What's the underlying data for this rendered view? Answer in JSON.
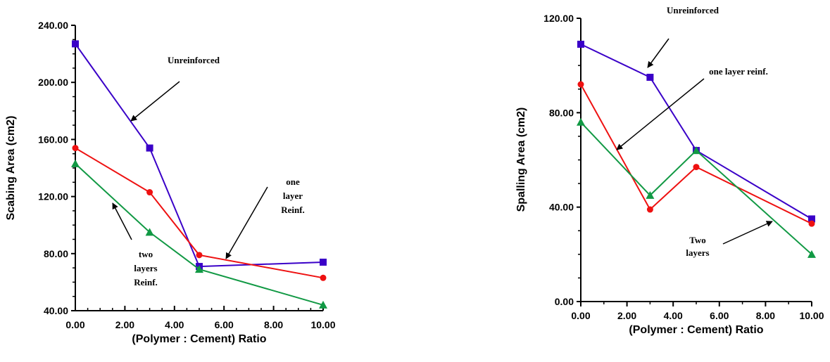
{
  "chart_data": [
    {
      "type": "line",
      "xlabel": "(Polymer : Cement) Ratio",
      "ylabel": "Scabing Area (cm2)",
      "xlim": [
        0,
        10
      ],
      "ylim": [
        40,
        240
      ],
      "xticks": [
        "0.00",
        "2.00",
        "4.00",
        "6.00",
        "8.00",
        "10.00"
      ],
      "yticks": [
        "40.00",
        "80.00",
        "120.00",
        "160.00",
        "200.00",
        "240.00"
      ],
      "grid": false,
      "series": [
        {
          "color": "#3a00c8",
          "marker": "square",
          "x": [
            0,
            3,
            5,
            10
          ],
          "y": [
            227,
            154,
            71,
            74
          ]
        },
        {
          "color": "#ee1111",
          "marker": "circle",
          "x": [
            0,
            3,
            5,
            10
          ],
          "y": [
            154,
            123,
            79,
            63
          ]
        },
        {
          "color": "#119944",
          "marker": "triangle",
          "x": [
            0,
            3,
            5,
            10
          ],
          "y": [
            143,
            95,
            69,
            44
          ]
        }
      ],
      "annotations": [
        {
          "lines": [
            "Unreinforced"
          ]
        },
        {
          "lines": [
            "one",
            "layer",
            "Reinf."
          ]
        },
        {
          "lines": [
            "two",
            "layers",
            "Reinf."
          ]
        }
      ]
    },
    {
      "type": "line",
      "xlabel": "(Polymer : Cement) Ratio",
      "ylabel": "Spalling Area (cm2)",
      "xlim": [
        0,
        10
      ],
      "ylim": [
        0,
        120
      ],
      "xticks": [
        "0.00",
        "2.00",
        "4.00",
        "6.00",
        "8.00",
        "10.00"
      ],
      "yticks": [
        "0.00",
        "40.00",
        "80.00",
        "120.00"
      ],
      "grid": false,
      "series": [
        {
          "color": "#3a00c8",
          "marker": "square",
          "x": [
            0,
            3,
            5,
            10
          ],
          "y": [
            109,
            95,
            64,
            35
          ]
        },
        {
          "color": "#ee1111",
          "marker": "circle",
          "x": [
            0,
            3,
            5,
            10
          ],
          "y": [
            92,
            39,
            57,
            33
          ]
        },
        {
          "color": "#119944",
          "marker": "triangle",
          "x": [
            0,
            3,
            5,
            10
          ],
          "y": [
            76,
            45,
            64,
            20
          ]
        }
      ],
      "annotations": [
        {
          "lines": [
            "Unreinforced"
          ]
        },
        {
          "lines": [
            "one layer reinf."
          ]
        },
        {
          "lines": [
            "Two",
            "layers"
          ]
        }
      ]
    }
  ]
}
